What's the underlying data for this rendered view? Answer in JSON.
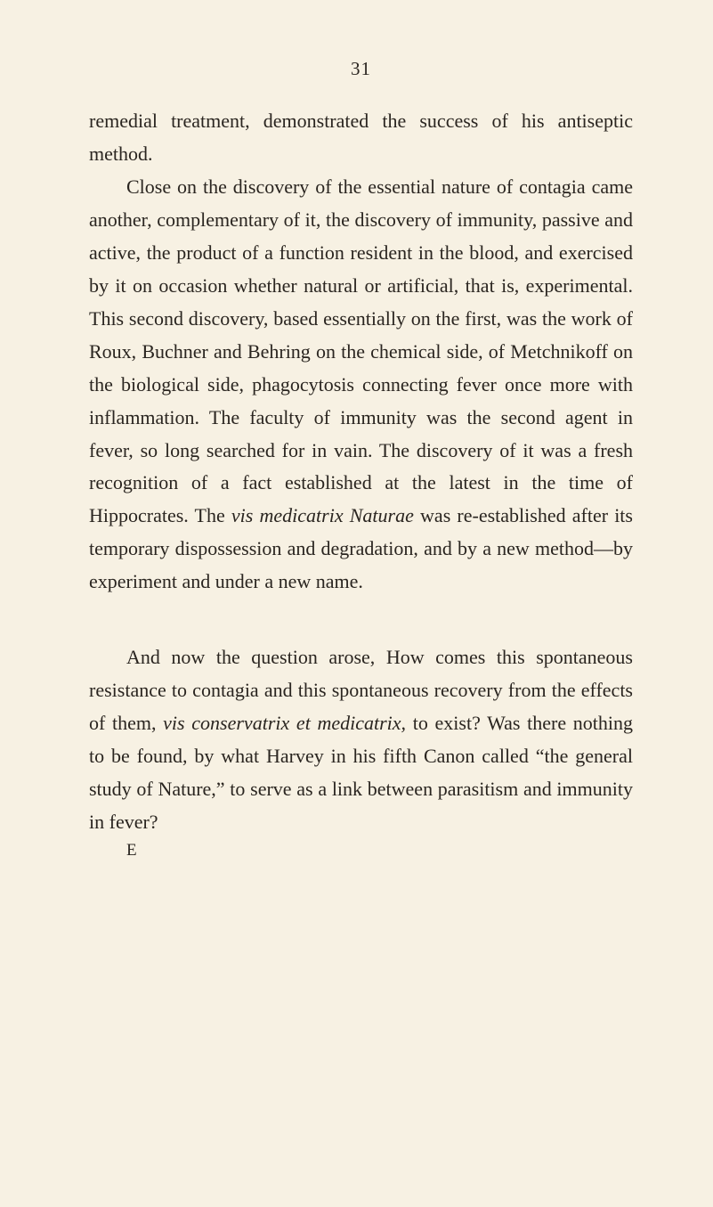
{
  "page_number": "31",
  "paragraphs": {
    "p1": "remedial treatment, demonstrated the success of his antiseptic method.",
    "p2_part1": "Close on the discovery of the essential nature of contagia came another, complementary of it, the discovery of immunity, passive and active, the product of a function resident in the blood, and exercised by it on occasion whether natural or artificial, that is, experimental. This second discovery, based essentially on the first, was the work of Roux, Buchner and Behring on the chemical side, of Metchnikoff on the biological side, phagocytosis connecting fever once more with inflammation. The faculty of immunity was the second agent in fever, so long searched for in vain. The discovery of it was a fresh recognition of a fact established at the latest in the time of Hippocrates. The ",
    "p2_italic1": "vis medi­catrix Naturae",
    "p2_part2": " was re-established after its tem­porary dispossession and degradation, and by a new method—by experiment and under a new name.",
    "p3_part1": "And now the question arose, How comes this spontaneous resistance to contagia and this spon­taneous recovery from the effects of them, ",
    "p3_italic1": "vis conservatrix et medicatrix,",
    "p3_part2": " to exist? Was there nothing to be found, by what Harvey in his fifth Canon called “the general study of Nature,” to serve as a link between parasitism and immunity in fever?"
  },
  "signature": "E",
  "colors": {
    "background": "#f7f1e3",
    "text": "#2a2520"
  },
  "typography": {
    "body_fontsize": 22,
    "line_height": 1.68,
    "indent": 42
  }
}
